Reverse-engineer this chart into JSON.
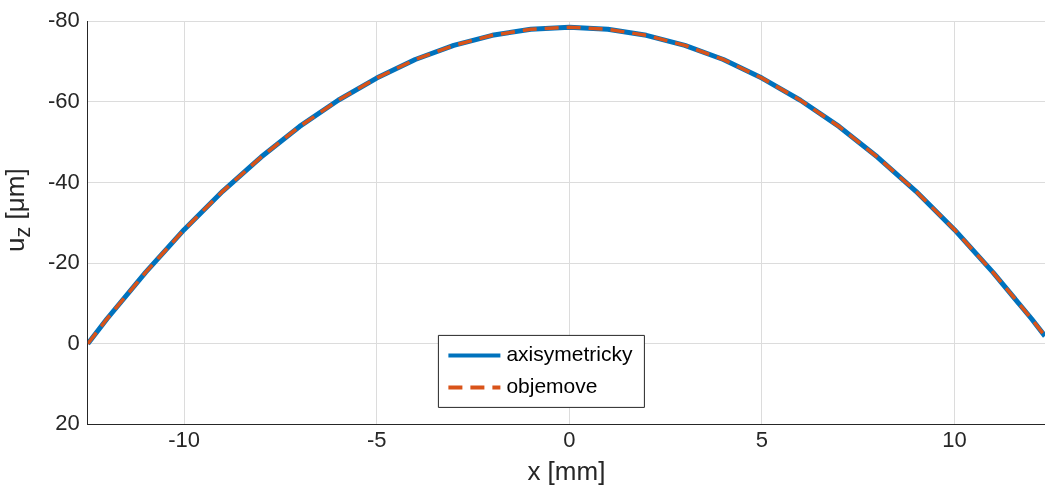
{
  "chart_data": {
    "type": "line",
    "xlabel": "x [mm]",
    "ylabel": "u$_{z}$ [μm]",
    "x": [
      -12.5,
      -12,
      -11,
      -10,
      -9,
      -8,
      -7,
      -6,
      -5,
      -4,
      -3,
      -2,
      -1,
      0,
      1,
      2,
      3,
      4,
      5,
      6,
      7,
      8,
      9,
      10,
      11,
      12,
      12.35
    ],
    "series": [
      {
        "name": "axisymetricky",
        "color": "#0072bd",
        "line_style": "solid",
        "values": [
          0,
          -6.2,
          -17.7,
          -28.3,
          -37.8,
          -46.3,
          -53.9,
          -60.4,
          -65.9,
          -70.5,
          -74.0,
          -76.5,
          -78.0,
          -78.5,
          -78.0,
          -76.5,
          -74.0,
          -70.5,
          -65.9,
          -60.4,
          -53.9,
          -46.3,
          -37.8,
          -28.3,
          -17.7,
          -6.2,
          -1.9
        ]
      },
      {
        "name": "objemove",
        "color": "#d95319",
        "line_style": "dashed",
        "values": [
          0,
          -6.2,
          -17.7,
          -28.3,
          -37.8,
          -46.3,
          -53.9,
          -60.4,
          -65.9,
          -70.5,
          -74.0,
          -76.5,
          -78.0,
          -78.5,
          -78.0,
          -76.5,
          -74.0,
          -70.5,
          -65.9,
          -60.4,
          -53.9,
          -46.3,
          -37.8,
          -28.3,
          -17.7,
          -6.2,
          -1.9
        ]
      }
    ],
    "xlim": [
      -12.5,
      12.35
    ],
    "xticks": [
      -10,
      -5,
      0,
      5,
      10
    ],
    "ylim": [
      20,
      -80
    ],
    "yticks": [
      -80,
      -60,
      -40,
      -20,
      0,
      20
    ],
    "grid": true,
    "legend": "bottom",
    "marker": "none"
  }
}
